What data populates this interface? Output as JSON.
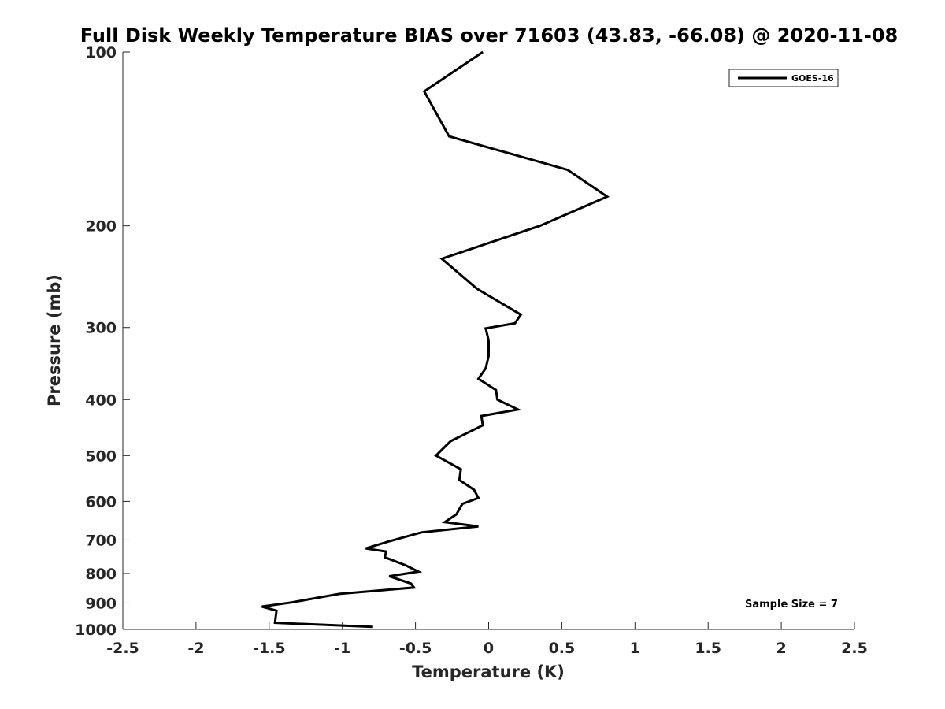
{
  "chart_data": {
    "type": "line",
    "title": "Full Disk Weekly Temperature BIAS over 71603 (43.83, -66.08) @ 2020-11-08",
    "xlabel": "Temperature (K)",
    "ylabel": "Pressure (mb)",
    "xlim": [
      -2.5,
      2.5
    ],
    "ylim": [
      100,
      1000
    ],
    "y_scale": "log",
    "y_reversed": true,
    "x_ticks": [
      "-2.5",
      "-2",
      "-1.5",
      "-1",
      "-0.5",
      "0",
      "0.5",
      "1",
      "1.5",
      "2",
      "2.5"
    ],
    "y_ticks": [
      "100",
      "200",
      "300",
      "400",
      "500",
      "600",
      "700",
      "800",
      "900",
      "1000"
    ],
    "grid": false,
    "legend_position": "top-right",
    "series": [
      {
        "name": "GOES-16",
        "color": "#000000",
        "x": [
          -0.04,
          -0.44,
          -0.27,
          0.54,
          0.81,
          0.35,
          -0.32,
          -0.08,
          0.22,
          0.18,
          -0.02,
          0.0,
          0.0,
          -0.02,
          -0.07,
          0.05,
          0.06,
          0.2,
          -0.05,
          -0.04,
          -0.26,
          -0.36,
          -0.19,
          -0.2,
          -0.1,
          -0.07,
          -0.18,
          -0.22,
          -0.3,
          -0.07,
          -0.46,
          -0.69,
          -0.84,
          -0.7,
          -0.71,
          -0.57,
          -0.48,
          -0.68,
          -0.53,
          -0.51,
          -1.02,
          -1.35,
          -1.55,
          -1.45,
          -1.46,
          -0.79
        ],
        "y": [
          100,
          117,
          140,
          160,
          178,
          200,
          228,
          257,
          285,
          295,
          301,
          316,
          336,
          353,
          368,
          385,
          400,
          416,
          427,
          443,
          472,
          500,
          528,
          551,
          573,
          592,
          606,
          632,
          652,
          663,
          679,
          705,
          724,
          733,
          750,
          774,
          794,
          809,
          833,
          846,
          868,
          898,
          913,
          928,
          974,
          990
        ]
      }
    ],
    "annotations": [
      "Sample Size = 7"
    ]
  }
}
